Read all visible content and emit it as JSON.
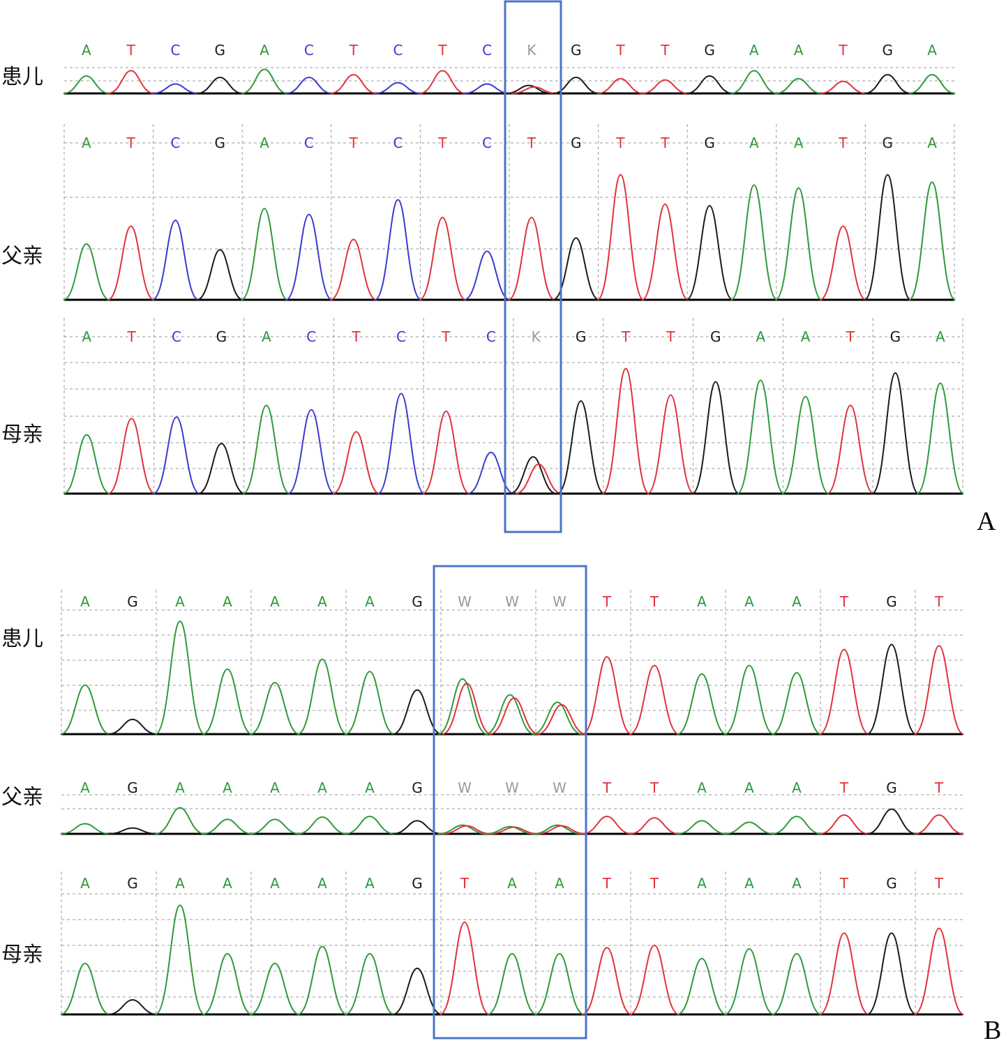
{
  "colors": {
    "A": "#2e9a3a",
    "T": "#e0323a",
    "C": "#3a3ad0",
    "G": "#1a1a1a",
    "ambiguous": "#9a9a9a",
    "highlight_box": "#4a74c9",
    "grid": "#9a9a9a"
  },
  "panels": [
    {
      "id": "A",
      "label": "A",
      "tracks": [
        {
          "person": "患儿",
          "sequence": [
            "A",
            "T",
            "C",
            "G",
            "A",
            "C",
            "T",
            "C",
            "T",
            "C",
            "K",
            "G",
            "T",
            "T",
            "G",
            "A",
            "A",
            "T",
            "G",
            "A"
          ]
        },
        {
          "person": "父亲",
          "sequence": [
            "A",
            "T",
            "C",
            "G",
            "A",
            "C",
            "T",
            "C",
            "T",
            "C",
            "T",
            "G",
            "T",
            "T",
            "G",
            "A",
            "A",
            "T",
            "G",
            "A"
          ]
        },
        {
          "person": "母亲",
          "sequence": [
            "A",
            "T",
            "C",
            "G",
            "A",
            "C",
            "T",
            "C",
            "T",
            "C",
            "K",
            "G",
            "T",
            "T",
            "G",
            "A",
            "A",
            "T",
            "G",
            "A"
          ]
        }
      ]
    },
    {
      "id": "B",
      "label": "B",
      "tracks": [
        {
          "person": "患儿",
          "sequence": [
            "A",
            "G",
            "A",
            "A",
            "A",
            "A",
            "A",
            "G",
            "W",
            "W",
            "W",
            "T",
            "T",
            "A",
            "A",
            "A",
            "T",
            "G",
            "T"
          ]
        },
        {
          "person": "父亲",
          "sequence": [
            "A",
            "G",
            "A",
            "A",
            "A",
            "A",
            "A",
            "G",
            "W",
            "W",
            "W",
            "T",
            "T",
            "A",
            "A",
            "A",
            "T",
            "G",
            "T"
          ]
        },
        {
          "person": "母亲",
          "sequence": [
            "A",
            "G",
            "A",
            "A",
            "A",
            "A",
            "A",
            "G",
            "T",
            "A",
            "A",
            "T",
            "T",
            "A",
            "A",
            "A",
            "T",
            "G",
            "T"
          ]
        }
      ]
    }
  ]
}
